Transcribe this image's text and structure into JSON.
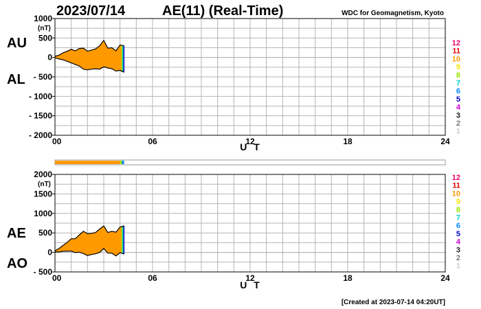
{
  "header": {
    "date": "2023/07/14",
    "title": "AE(11) (Real-Time)",
    "source": "WDC for Geomagnetism, Kyoto"
  },
  "footer": {
    "created": "[Created at 2023-07-14 04:20UT]"
  },
  "legend": {
    "labels": [
      "12",
      "11",
      "10",
      "9",
      "8",
      "7",
      "6",
      "5",
      "4",
      "3",
      "2",
      "1"
    ],
    "colors": [
      "#e8006e",
      "#e80000",
      "#ff9900",
      "#f2e600",
      "#99e600",
      "#00d2c8",
      "#0088ff",
      "#0000c8",
      "#cc00cc",
      "#222222",
      "#777777",
      "#cccccc"
    ]
  },
  "station_bar": {
    "segments": [
      {
        "from": 0.0,
        "to": 4.0,
        "color": "#ff9900"
      },
      {
        "from": 4.0,
        "to": 4.12,
        "color": "#99e600"
      },
      {
        "from": 4.12,
        "to": 4.25,
        "color": "#0088ff"
      }
    ]
  },
  "fill_colors": {
    "main": "#ff9900",
    "edge1": "#99e600",
    "edge2": "#00d2c8",
    "edge3": "#0000c8"
  },
  "chart_data": [
    {
      "type": "area",
      "side_labels": [
        "AU",
        "AL"
      ],
      "yunit": "(nT)",
      "ylim": [
        -2000,
        1000
      ],
      "yticks": [
        1000,
        500,
        0,
        -500,
        -1000,
        -1500,
        -2000
      ],
      "ytick_labels": [
        "1000",
        "500",
        "0",
        "- 500",
        "- 1000",
        "- 1500",
        "- 2000"
      ],
      "xlabel": "U T",
      "xlim": [
        0,
        24
      ],
      "xticks": [
        0,
        6,
        12,
        18,
        24
      ],
      "xtick_labels": [
        "00",
        "06",
        "12",
        "18",
        "24"
      ],
      "grid": true,
      "x": [
        0,
        0.25,
        0.5,
        0.75,
        1.0,
        1.25,
        1.5,
        1.75,
        2.0,
        2.25,
        2.5,
        2.75,
        3.0,
        3.25,
        3.5,
        3.75,
        4.0,
        4.25
      ],
      "series": [
        {
          "name": "AU",
          "values": [
            30,
            60,
            120,
            160,
            210,
            170,
            230,
            240,
            160,
            190,
            220,
            300,
            440,
            240,
            250,
            170,
            320,
            300
          ]
        },
        {
          "name": "AL",
          "values": [
            -10,
            -40,
            -60,
            -100,
            -140,
            -180,
            -220,
            -300,
            -320,
            -300,
            -290,
            -300,
            -240,
            -270,
            -290,
            -350,
            -330,
            -380
          ]
        }
      ]
    },
    {
      "type": "area",
      "side_labels": [
        "AE",
        "AO"
      ],
      "yunit": "(nT)",
      "ylim": [
        -500,
        2000
      ],
      "yticks": [
        2000,
        1500,
        1000,
        500,
        0,
        -500
      ],
      "ytick_labels": [
        "2000",
        "1500",
        "1000",
        "500",
        "0",
        "- 500"
      ],
      "xlabel": "U T",
      "xlim": [
        0,
        24
      ],
      "xticks": [
        0,
        6,
        12,
        18,
        24
      ],
      "xtick_labels": [
        "00",
        "06",
        "12",
        "18",
        "24"
      ],
      "grid": true,
      "x": [
        0,
        0.25,
        0.5,
        0.75,
        1.0,
        1.25,
        1.5,
        1.75,
        2.0,
        2.25,
        2.5,
        2.75,
        3.0,
        3.25,
        3.5,
        3.75,
        4.0,
        4.25
      ],
      "series": [
        {
          "name": "AE",
          "values": [
            40,
            100,
            180,
            260,
            350,
            350,
            450,
            540,
            480,
            490,
            510,
            600,
            680,
            510,
            540,
            520,
            650,
            680
          ]
        },
        {
          "name": "AO",
          "values": [
            10,
            10,
            30,
            30,
            35,
            -5,
            5,
            -30,
            -80,
            -55,
            -35,
            0,
            100,
            -15,
            -20,
            -90,
            -5,
            -40
          ]
        }
      ]
    }
  ]
}
